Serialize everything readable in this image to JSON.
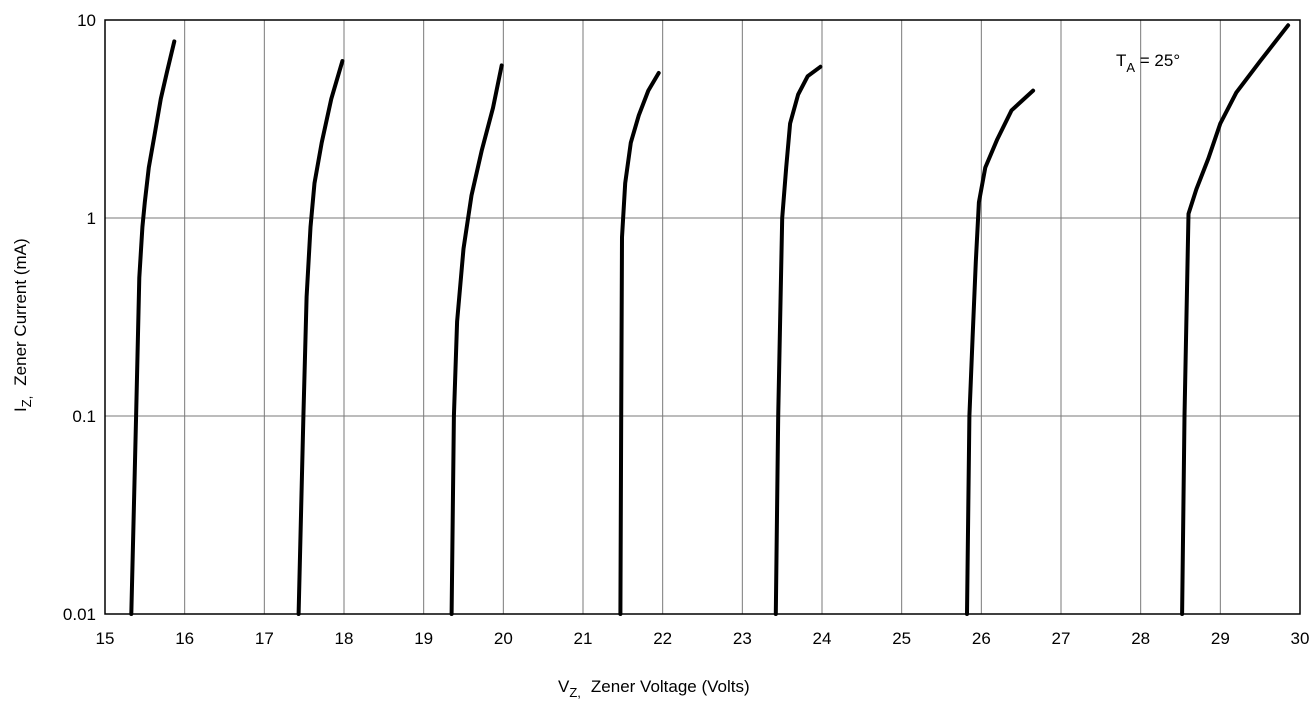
{
  "chart_data": {
    "type": "line",
    "title": "",
    "xlabel": {
      "main": "V",
      "sub": "Z,",
      "rest": "Zener Voltage (Volts)"
    },
    "ylabel": {
      "main": "I",
      "sub": "Z,",
      "rest": "Zener Current (mA)"
    },
    "annotation": {
      "main": "T",
      "sub": "A",
      "rest": " = 25°"
    },
    "xlim": [
      15,
      30
    ],
    "ylim": [
      0.01,
      10
    ],
    "y_scale": "log",
    "grid": true,
    "x_ticks": [
      "15",
      "16",
      "17",
      "18",
      "19",
      "20",
      "21",
      "22",
      "23",
      "24",
      "25",
      "26",
      "27",
      "28",
      "29",
      "30"
    ],
    "y_ticks": [
      {
        "value": 0.01,
        "label": "0.01"
      },
      {
        "value": 0.1,
        "label": "0.1"
      },
      {
        "value": 1,
        "label": "1"
      },
      {
        "value": 10,
        "label": "10"
      }
    ],
    "series": [
      {
        "x": [
          15.33,
          15.39,
          15.43,
          15.47,
          15.5,
          15.55,
          15.62,
          15.7,
          15.78,
          15.87
        ],
        "y": [
          0.01,
          0.1,
          0.5,
          0.9,
          1.2,
          1.8,
          2.6,
          4.0,
          5.5,
          7.8
        ]
      },
      {
        "x": [
          17.43,
          17.49,
          17.53,
          17.58,
          17.63,
          17.72,
          17.84,
          17.98
        ],
        "y": [
          0.01,
          0.1,
          0.4,
          0.9,
          1.5,
          2.4,
          4.0,
          6.2
        ]
      },
      {
        "x": [
          19.35,
          19.38,
          19.42,
          19.5,
          19.6,
          19.73,
          19.87,
          19.98
        ],
        "y": [
          0.01,
          0.1,
          0.3,
          0.7,
          1.3,
          2.2,
          3.6,
          5.9
        ]
      },
      {
        "x": [
          21.47,
          21.48,
          21.49,
          21.53,
          21.6,
          21.7,
          21.82,
          21.95
        ],
        "y": [
          0.01,
          0.1,
          0.8,
          1.5,
          2.4,
          3.3,
          4.4,
          5.4
        ]
      },
      {
        "x": [
          23.42,
          23.45,
          23.5,
          23.55,
          23.6,
          23.7,
          23.82,
          23.98
        ],
        "y": [
          0.01,
          0.1,
          1.0,
          1.8,
          3.0,
          4.2,
          5.2,
          5.8
        ]
      },
      {
        "x": [
          25.82,
          25.85,
          25.89,
          25.93,
          25.97,
          26.05,
          26.2,
          26.38,
          26.65
        ],
        "y": [
          0.01,
          0.1,
          0.25,
          0.6,
          1.2,
          1.8,
          2.5,
          3.5,
          4.4
        ]
      },
      {
        "x": [
          28.52,
          28.55,
          28.6,
          28.7,
          28.85,
          29.0,
          29.2,
          29.5,
          29.85
        ],
        "y": [
          0.01,
          0.1,
          1.05,
          1.4,
          2.0,
          3.0,
          4.3,
          6.2,
          9.4
        ]
      }
    ]
  }
}
